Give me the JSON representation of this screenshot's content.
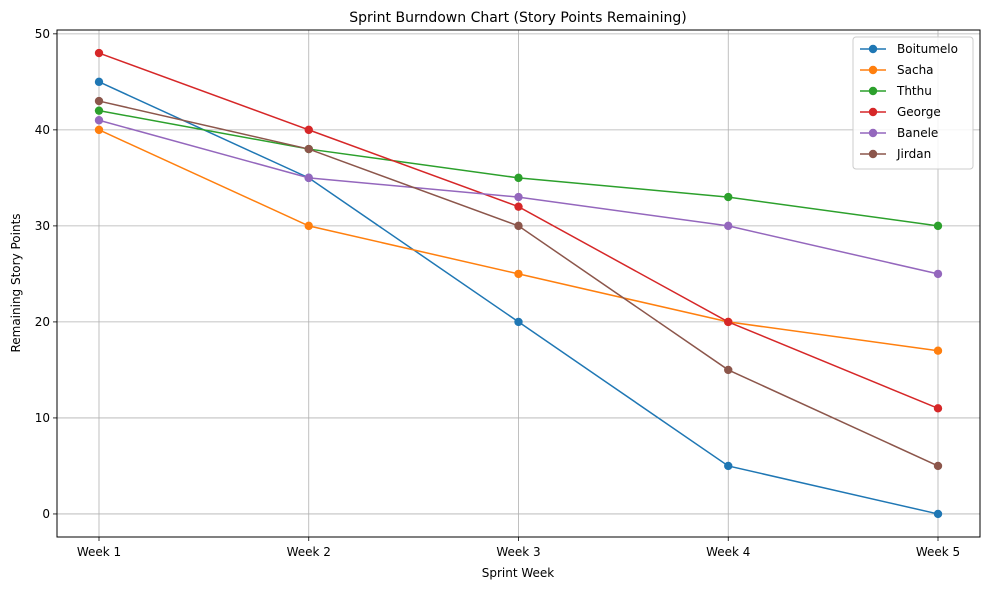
{
  "chart_data": {
    "type": "line",
    "title": "Sprint Burndown Chart (Story Points Remaining)",
    "xlabel": "Sprint Week",
    "ylabel": "Remaining Story Points",
    "categories": [
      "Week 1",
      "Week 2",
      "Week 3",
      "Week 4",
      "Week 5"
    ],
    "ylim": [
      -2.4,
      50.4
    ],
    "yticks": [
      0,
      10,
      20,
      30,
      40,
      50
    ],
    "grid": true,
    "legend_position": "top-right",
    "marker": "circle",
    "series": [
      {
        "name": "Boitumelo",
        "color": "#1f77b4",
        "values": [
          45,
          35,
          20,
          5,
          0
        ]
      },
      {
        "name": "Sacha",
        "color": "#ff7f0e",
        "values": [
          40,
          30,
          25,
          20,
          17
        ]
      },
      {
        "name": "Ththu",
        "color": "#2ca02c",
        "values": [
          42,
          38,
          35,
          33,
          30
        ]
      },
      {
        "name": "George",
        "color": "#d62728",
        "values": [
          48,
          40,
          32,
          20,
          11
        ]
      },
      {
        "name": "Banele",
        "color": "#9467bd",
        "values": [
          41,
          35,
          33,
          30,
          25
        ]
      },
      {
        "name": "Jirdan",
        "color": "#8c564b",
        "values": [
          43,
          38,
          30,
          15,
          5
        ]
      }
    ]
  }
}
